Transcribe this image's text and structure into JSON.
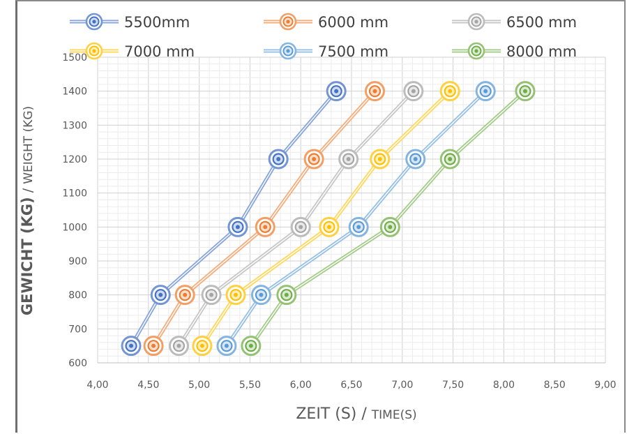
{
  "chart_data": {
    "type": "line",
    "title": "",
    "xlabel_main": "ZEIT (S)",
    "xlabel_sep": " / ",
    "xlabel_sub": "TIME(S)",
    "ylabel_main": "GEWICHT (KG)",
    "ylabel_sep": " / ",
    "ylabel_sub": "WEIGHT (KG)",
    "xlim": [
      4.0,
      9.0
    ],
    "ylim": [
      600,
      1500
    ],
    "x_ticks": [
      "4,00",
      "4,50",
      "5,00",
      "5,50",
      "6,00",
      "6,50",
      "7,00",
      "7,50",
      "8,00",
      "8,50",
      "9,00"
    ],
    "y_ticks": [
      "600",
      "700",
      "800",
      "900",
      "1000",
      "1100",
      "1200",
      "1300",
      "1400",
      "1500"
    ],
    "grid": true,
    "legend_position": "top",
    "series": [
      {
        "name": "5500mm",
        "color": "#4472C4",
        "x": [
          4.33,
          4.62,
          5.38,
          5.78,
          6.35
        ],
        "y": [
          650,
          800,
          1000,
          1200,
          1400
        ]
      },
      {
        "name": "6000 mm",
        "color": "#ED7D31",
        "x": [
          4.55,
          4.86,
          5.65,
          6.13,
          6.73
        ],
        "y": [
          650,
          800,
          1000,
          1200,
          1400
        ]
      },
      {
        "name": "6500 mm",
        "color": "#A5A5A5",
        "x": [
          4.8,
          5.12,
          6.0,
          6.47,
          7.11
        ],
        "y": [
          650,
          800,
          1000,
          1200,
          1400
        ]
      },
      {
        "name": "7000 mm",
        "color": "#FFC000",
        "x": [
          5.03,
          5.36,
          6.28,
          6.78,
          7.47
        ],
        "y": [
          650,
          800,
          1000,
          1200,
          1400
        ]
      },
      {
        "name": "7500 mm",
        "color": "#5B9BD5",
        "x": [
          5.27,
          5.61,
          6.57,
          7.13,
          7.82
        ],
        "y": [
          650,
          800,
          1000,
          1200,
          1400
        ]
      },
      {
        "name": "8000 mm",
        "color": "#70AD47",
        "x": [
          5.51,
          5.86,
          6.88,
          7.47,
          8.21
        ],
        "y": [
          650,
          800,
          1000,
          1200,
          1400
        ]
      }
    ]
  }
}
